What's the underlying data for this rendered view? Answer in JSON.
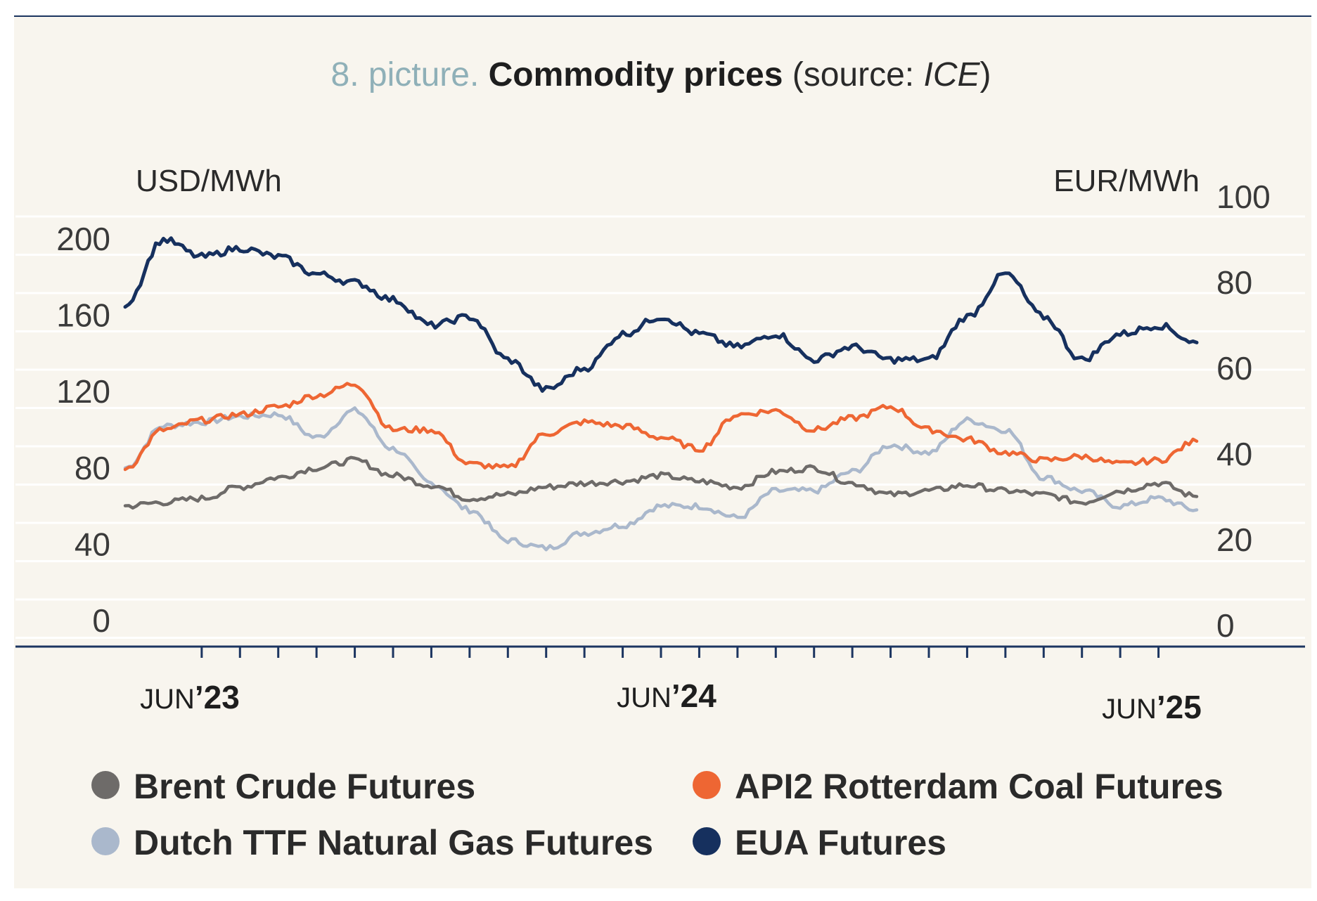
{
  "title": {
    "prefix": "8. picture.",
    "main": "Commodity prices",
    "source_open": "(source: ",
    "source_name": "ICE",
    "source_close": ")"
  },
  "colors": {
    "background": "#f8f5ee",
    "grid": "#ffffff",
    "axis": "#1c3560",
    "prefix": "#8fb0b8",
    "brent": "#6e6b69",
    "coal": "#ee6633",
    "ttf": "#aab8cc",
    "eua": "#16305e"
  },
  "chart_data": {
    "type": "line",
    "x_axis": {
      "labels": [
        {
          "month": "JUN",
          "year": "’23",
          "date": "2023-06"
        },
        {
          "month": "JUN",
          "year": "’24",
          "date": "2024-06"
        },
        {
          "month": "JUN",
          "year": "’25",
          "date": "2025-06"
        }
      ],
      "range": [
        "2023-03",
        "2025-07"
      ],
      "tick_interval": "monthly"
    },
    "y_left": {
      "unit": "USD/MWh",
      "range": [
        0,
        200
      ],
      "ticks": [
        0,
        40,
        80,
        120,
        160,
        200
      ]
    },
    "y_right": {
      "unit": "EUR/MWh",
      "range": [
        0,
        100
      ],
      "ticks": [
        0,
        20,
        40,
        60,
        80,
        100
      ]
    },
    "grid": true,
    "legend_position": "bottom",
    "x": [
      "2023-03",
      "2023-04",
      "2023-05",
      "2023-06",
      "2023-07",
      "2023-08",
      "2023-09",
      "2023-10",
      "2023-11",
      "2023-12",
      "2024-01",
      "2024-02",
      "2024-03",
      "2024-04",
      "2024-05",
      "2024-06",
      "2024-07",
      "2024-08",
      "2024-09",
      "2024-10",
      "2024-11",
      "2024-12",
      "2025-01",
      "2025-02",
      "2025-03",
      "2025-04",
      "2025-05",
      "2025-06",
      "2025-07"
    ],
    "series": [
      {
        "name": "Brent Crude Futures",
        "color_key": "brent",
        "axis": "left",
        "values": [
          60,
          62,
          64,
          70,
          75,
          80,
          84,
          76,
          71,
          64,
          66,
          70,
          72,
          73,
          76,
          73,
          70,
          78,
          80,
          72,
          66,
          68,
          71,
          68,
          66,
          62,
          68,
          72,
          65
        ]
      },
      {
        "name": "API2 Rotterdam Coal Futures",
        "color_key": "coal",
        "axis": "left",
        "values": [
          80,
          100,
          105,
          108,
          112,
          118,
          124,
          100,
          100,
          82,
          80,
          98,
          104,
          102,
          96,
          90,
          108,
          110,
          100,
          106,
          112,
          100,
          95,
          88,
          84,
          86,
          82,
          84,
          94
        ]
      },
      {
        "name": "Dutch TTF Natural Gas Futures",
        "color_key": "ttf",
        "axis": "left",
        "values": [
          80,
          102,
          104,
          107,
          108,
          96,
          110,
          90,
          72,
          58,
          42,
          38,
          46,
          50,
          60,
          60,
          54,
          68,
          68,
          78,
          92,
          88,
          105,
          100,
          75,
          68,
          60,
          64,
          58
        ]
      },
      {
        "name": "EUA Futures",
        "color_key": "eua",
        "axis": "right",
        "values": [
          75,
          90,
          86,
          88,
          86,
          82,
          80,
          76,
          70,
          72,
          62,
          55,
          60,
          68,
          72,
          68,
          65,
          68,
          62,
          65,
          62,
          62,
          72,
          82,
          72,
          62,
          68,
          70,
          66
        ]
      }
    ]
  },
  "legend": [
    {
      "label": "Brent Crude Futures",
      "color_key": "brent"
    },
    {
      "label": "API2 Rotterdam Coal Futures",
      "color_key": "coal"
    },
    {
      "label": "Dutch TTF Natural Gas Futures",
      "color_key": "ttf"
    },
    {
      "label": "EUA Futures",
      "color_key": "eua"
    }
  ]
}
